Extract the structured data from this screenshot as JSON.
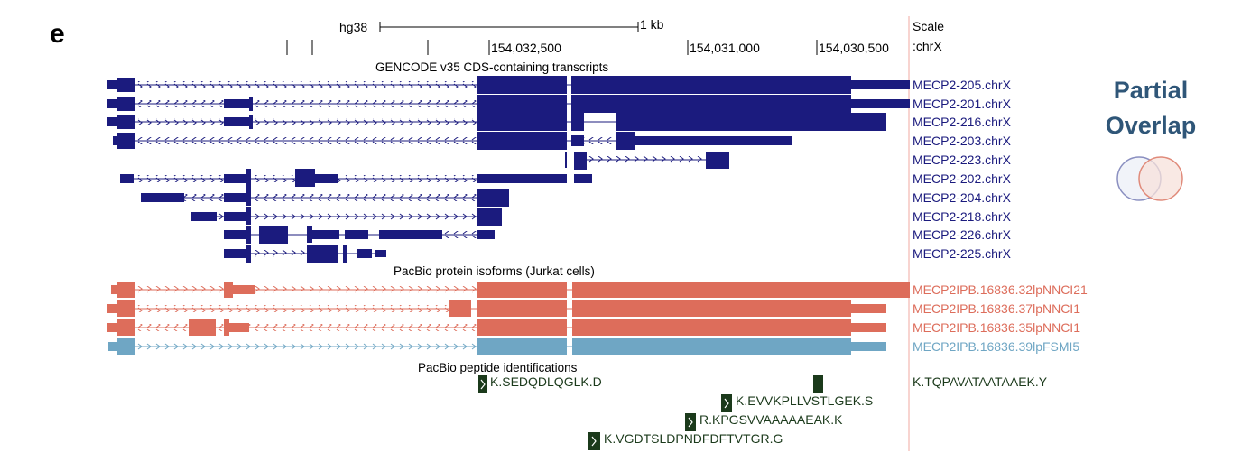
{
  "panel_label": "e",
  "genome": "hg38",
  "scale_bar_label": "1 kb",
  "scale_text": "Scale",
  "chrom_text": ":chrX",
  "ruler_ticks": [
    "154,032,500",
    "154,031,000",
    "154,030,500"
  ],
  "gencode_track_title": "GENCODE v35 CDS-containing transcripts",
  "pacbio_track_title": "PacBio protein isoforms (Jurkat cells)",
  "peptide_track_title": "PacBio peptide identifications",
  "gencode_transcripts": [
    "MECP2-205.chrX",
    "MECP2-201.chrX",
    "MECP2-216.chrX",
    "MECP2-203.chrX",
    "MECP2-223.chrX",
    "MECP2-202.chrX",
    "MECP2-204.chrX",
    "MECP2-218.chrX",
    "MECP2-226.chrX",
    "MECP2-225.chrX"
  ],
  "pacbio_isoforms": [
    {
      "label": "MECP2IPB.16836.32lpNNCI21",
      "color": "#dd6d5b"
    },
    {
      "label": "MECP2IPB.16836.37lpNNCI1",
      "color": "#dd6d5b"
    },
    {
      "label": "MECP2IPB.16836.35lpNNCI1",
      "color": "#dd6d5b"
    },
    {
      "label": "MECP2IPB.16836.39lpFSMI5",
      "color": "#6fa6c4"
    }
  ],
  "peptides": [
    "K.SEDQDLQGLK.D",
    "K.TQPAVATAATAAEK.Y",
    "K.EVVKPLLVSTLGEK.S",
    "R.KPGSVVAAAAAEAK.K",
    "K.VGDTSLDPNDFDFTVTGR.G"
  ],
  "overlap_title": [
    "Partial",
    "Overlap"
  ],
  "colors": {
    "gencode": "#1b1b7e",
    "pacbio": "#dd6d5b",
    "pacbio_alt": "#6fa6c4",
    "peptide": "#1b3a1b",
    "overlap_text": "#2f5678",
    "divider": "#f2a8a0"
  }
}
